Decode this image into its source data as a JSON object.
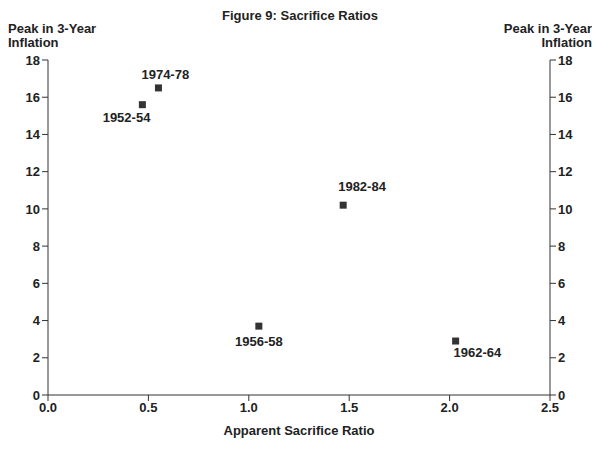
{
  "chart_data": {
    "type": "scatter",
    "title": "Figure 9: Sacrifice Ratios",
    "x_label": "Apparent Sacrifice Ratio",
    "y_label": "Peak in 3-Year Inflation",
    "y2_label": "Peak in 3-Year Inflation",
    "x": [
      0.47,
      0.55,
      1.05,
      1.47,
      2.03
    ],
    "values": [
      15.6,
      16.5,
      3.7,
      10.2,
      2.9
    ],
    "point_labels": [
      "1952-54",
      "1974-78",
      "1956-58",
      "1982-84",
      "1962-64"
    ],
    "color": "#333333",
    "marker": "square",
    "grid": false,
    "xlim": [
      0,
      2.5
    ],
    "xticks": [
      {
        "value": 0,
        "label": "0.0"
      },
      {
        "value": 0.5,
        "label": "0.5"
      },
      {
        "value": 1,
        "label": "1.0"
      },
      {
        "value": 1.5,
        "label": "1.5"
      },
      {
        "value": 2,
        "label": "2.0"
      },
      {
        "value": 2.5,
        "label": "2.5"
      }
    ],
    "ylim": [
      0,
      18
    ],
    "yticks": [
      0,
      2,
      4,
      6,
      8,
      10,
      12,
      14,
      16,
      18
    ],
    "y2lim": [
      0,
      18
    ],
    "y2ticks": [
      0,
      2,
      4,
      6,
      8,
      10,
      12,
      14,
      16,
      18
    ]
  }
}
